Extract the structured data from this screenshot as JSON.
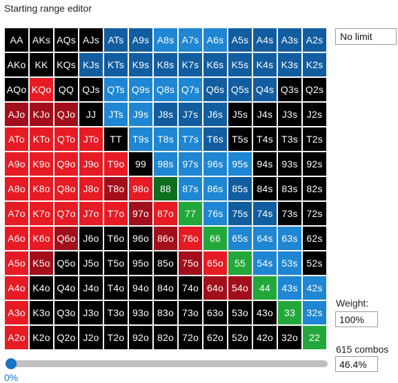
{
  "window": {
    "title": "Starting range editor"
  },
  "controls": {
    "bet_limit": "No limit",
    "weight_label": "Weight:",
    "weight_value": "100%",
    "combos_label": "615 combos",
    "percent_value": "46.4%",
    "slider_label": "0%",
    "slider_value": 0
  },
  "colors": {
    "black": "#000000",
    "dark_blue": "#125da0",
    "light_blue": "#1e86d2",
    "red": "#e61b24",
    "dark_red": "#a20f1b",
    "green": "#22a83a",
    "dark_green": "#0d6e1e",
    "slider_accent": "#1673c6"
  },
  "grid": {
    "rows": [
      [
        "AA",
        "AKs",
        "AQs",
        "AJs",
        "ATs",
        "A9s",
        "A8s",
        "A7s",
        "A6s",
        "A5s",
        "A4s",
        "A3s",
        "A2s"
      ],
      [
        "AKo",
        "KK",
        "KQs",
        "KJs",
        "KTs",
        "K9s",
        "K8s",
        "K7s",
        "K6s",
        "K5s",
        "K4s",
        "K3s",
        "K2s"
      ],
      [
        "AQo",
        "KQo",
        "QQ",
        "QJs",
        "QTs",
        "Q9s",
        "Q8s",
        "Q7s",
        "Q6s",
        "Q5s",
        "Q4s",
        "Q3s",
        "Q2s"
      ],
      [
        "AJo",
        "KJo",
        "QJo",
        "JJ",
        "JTs",
        "J9s",
        "J8s",
        "J7s",
        "J6s",
        "J5s",
        "J4s",
        "J3s",
        "J2s"
      ],
      [
        "ATo",
        "KTo",
        "QTo",
        "JTo",
        "TT",
        "T9s",
        "T8s",
        "T7s",
        "T6s",
        "T5s",
        "T4s",
        "T3s",
        "T2s"
      ],
      [
        "A9o",
        "K9o",
        "Q9o",
        "J9o",
        "T9o",
        "99",
        "98s",
        "97s",
        "96s",
        "95s",
        "94s",
        "93s",
        "92s"
      ],
      [
        "A8o",
        "K8o",
        "Q8o",
        "J8o",
        "T8o",
        "98o",
        "88",
        "87s",
        "86s",
        "85s",
        "84s",
        "83s",
        "82s"
      ],
      [
        "A7o",
        "K7o",
        "Q7o",
        "J7o",
        "T7o",
        "97o",
        "87o",
        "77",
        "76s",
        "75s",
        "74s",
        "73s",
        "72s"
      ],
      [
        "A6o",
        "K6o",
        "Q6o",
        "J6o",
        "T6o",
        "96o",
        "86o",
        "76o",
        "66",
        "65s",
        "64s",
        "63s",
        "62s"
      ],
      [
        "A5o",
        "K5o",
        "Q5o",
        "J5o",
        "T5o",
        "95o",
        "85o",
        "75o",
        "65o",
        "55",
        "54s",
        "53s",
        "52s"
      ],
      [
        "A4o",
        "K4o",
        "Q4o",
        "J4o",
        "T4o",
        "94o",
        "84o",
        "74o",
        "64o",
        "54o",
        "44",
        "43s",
        "42s"
      ],
      [
        "A3o",
        "K3o",
        "Q3o",
        "J3o",
        "T3o",
        "93o",
        "83o",
        "73o",
        "63o",
        "53o",
        "43o",
        "33",
        "32s"
      ],
      [
        "A2o",
        "K2o",
        "Q2o",
        "J2o",
        "T2o",
        "92o",
        "82o",
        "72o",
        "62o",
        "52o",
        "42o",
        "32o",
        "22"
      ]
    ],
    "cell_colors": [
      [
        "K",
        "K",
        "K",
        "K",
        "D",
        "D",
        "L",
        "L",
        "L",
        "D",
        "D",
        "D",
        "D"
      ],
      [
        "K",
        "K",
        "K",
        "D",
        "D",
        "D",
        "D",
        "D",
        "D",
        "D",
        "D",
        "D",
        "D"
      ],
      [
        "K",
        "R",
        "K",
        "K",
        "L",
        "L",
        "L",
        "L",
        "D",
        "D",
        "D",
        "K",
        "K"
      ],
      [
        "X",
        "X",
        "X",
        "K",
        "L",
        "L",
        "D",
        "D",
        "D",
        "K",
        "K",
        "K",
        "K"
      ],
      [
        "R",
        "R",
        "R",
        "R",
        "K",
        "L",
        "L",
        "L",
        "D",
        "K",
        "K",
        "K",
        "K"
      ],
      [
        "R",
        "R",
        "R",
        "R",
        "R",
        "K",
        "L",
        "L",
        "L",
        "L",
        "K",
        "K",
        "K"
      ],
      [
        "R",
        "R",
        "R",
        "R",
        "X",
        "R",
        "H",
        "L",
        "L",
        "D",
        "K",
        "K",
        "K"
      ],
      [
        "R",
        "R",
        "R",
        "R",
        "R",
        "X",
        "R",
        "G",
        "L",
        "D",
        "D",
        "K",
        "K"
      ],
      [
        "R",
        "R",
        "X",
        "K",
        "K",
        "K",
        "X",
        "R",
        "G",
        "L",
        "L",
        "L",
        "K"
      ],
      [
        "R",
        "X",
        "K",
        "K",
        "K",
        "K",
        "K",
        "X",
        "R",
        "G",
        "L",
        "L",
        "K"
      ],
      [
        "R",
        "K",
        "K",
        "K",
        "K",
        "K",
        "K",
        "K",
        "X",
        "X",
        "G",
        "L",
        "L"
      ],
      [
        "R",
        "K",
        "K",
        "K",
        "K",
        "K",
        "K",
        "K",
        "K",
        "K",
        "K",
        "G",
        "L"
      ],
      [
        "R",
        "K",
        "K",
        "K",
        "K",
        "K",
        "K",
        "K",
        "K",
        "K",
        "K",
        "K",
        "G"
      ]
    ]
  }
}
